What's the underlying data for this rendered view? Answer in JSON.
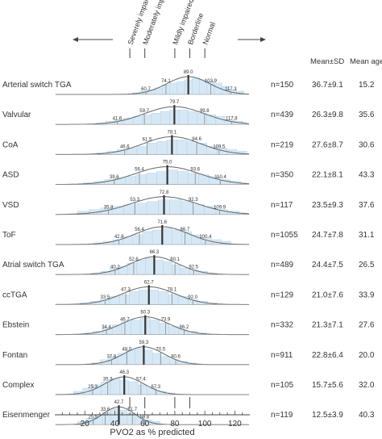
{
  "chart_data": {
    "type": "histogram-distribution",
    "xlabel": "PVO2 as % predicted",
    "xlim": [
      0,
      130
    ],
    "x_ticks": [
      20,
      40,
      60,
      80,
      100,
      120
    ],
    "category_thresholds": [
      {
        "label": "Severely impaired",
        "value": 50
      },
      {
        "label": "Moderately impaired",
        "value": 60
      },
      {
        "label": "Mildly impaired",
        "value": 80
      },
      {
        "label": "Borderline",
        "value": 90
      },
      {
        "label": "Normal",
        "value": 100
      }
    ],
    "headers": {
      "mean": "Mean±SD",
      "age": "Mean age"
    },
    "rows": [
      {
        "group": "Arterial switch TGA",
        "n": "n=150",
        "mean_sd": "36.7±9.1",
        "age": "15.2",
        "mean_pvo2": 89.0,
        "sd_pvo2": 14.3,
        "percentiles": [
          60.7,
          74.1,
          89.0,
          103.9,
          117.3
        ],
        "hist": [
          0.1,
          0.2,
          0.3,
          0.4,
          0.6,
          0.7,
          0.8,
          0.9,
          1.0,
          0.9,
          0.8,
          0.7,
          0.5,
          0.3,
          0.2
        ]
      },
      {
        "group": "Valvular",
        "n": "n=439",
        "mean_sd": "26.3±9.8",
        "age": "35.6",
        "mean_pvo2": 79.7,
        "sd_pvo2": 20.0,
        "percentiles": [
          41.6,
          59.7,
          79.7,
          99.8,
          117.8
        ],
        "hist": [
          0.1,
          0.2,
          0.3,
          0.4,
          0.5,
          0.6,
          0.7,
          0.8,
          0.9,
          0.9,
          0.8,
          0.7,
          0.6,
          0.5,
          0.3,
          0.2,
          0.1
        ]
      },
      {
        "group": "CoA",
        "n": "n=219",
        "mean_sd": "27.6±8.7",
        "age": "30.6",
        "mean_pvo2": 78.1,
        "sd_pvo2": 19.2,
        "percentiles": [
          46.6,
          61.5,
          78.1,
          94.6,
          109.5
        ],
        "hist": [
          0.1,
          0.2,
          0.3,
          0.4,
          0.5,
          0.7,
          0.8,
          0.9,
          0.9,
          0.8,
          0.7,
          0.5,
          0.4,
          0.3,
          0.2
        ]
      },
      {
        "group": "ASD",
        "n": "n=350",
        "mean_sd": "22.1±8.1",
        "age": "43.3",
        "mean_pvo2": 75.0,
        "sd_pvo2": 21.5,
        "percentiles": [
          39.6,
          56.4,
          75.0,
          93.6,
          110.4
        ],
        "hist": [
          0.1,
          0.2,
          0.3,
          0.4,
          0.5,
          0.6,
          0.7,
          0.8,
          0.9,
          0.8,
          0.7,
          0.6,
          0.5,
          0.3,
          0.2,
          0.1
        ]
      },
      {
        "group": "VSD",
        "n": "n=117",
        "mean_sd": "23.5±9.3",
        "age": "37.6",
        "mean_pvo2": 72.8,
        "sd_pvo2": 22.2,
        "percentiles": [
          35.8,
          53.3,
          72.8,
          92.3,
          109.9
        ],
        "hist": [
          0.2,
          0.3,
          0.4,
          0.5,
          0.6,
          0.7,
          0.8,
          0.9,
          0.9,
          0.8,
          0.6,
          0.5,
          0.3,
          0.2,
          0.1
        ]
      },
      {
        "group": "ToF",
        "n": "n=1055",
        "mean_sd": "24.7±7.8",
        "age": "31.1",
        "mean_pvo2": 71.6,
        "sd_pvo2": 17.6,
        "percentiles": [
          42.8,
          56.4,
          71.6,
          86.7,
          100.4
        ],
        "hist": [
          0.1,
          0.2,
          0.3,
          0.5,
          0.6,
          0.8,
          0.9,
          1.0,
          0.9,
          0.8,
          0.6,
          0.4,
          0.3,
          0.2
        ]
      },
      {
        "group": "Atrial switch TGA",
        "n": "n=489",
        "mean_sd": "24.4±7.5",
        "age": "26.5",
        "mean_pvo2": 66.3,
        "sd_pvo2": 15.9,
        "percentiles": [
          40.2,
          52.6,
          66.3,
          80.1,
          92.5
        ],
        "hist": [
          0.1,
          0.2,
          0.4,
          0.5,
          0.7,
          0.9,
          1.0,
          0.9,
          0.8,
          0.6,
          0.4,
          0.3,
          0.2,
          0.1
        ]
      },
      {
        "group": "ccTGA",
        "n": "n=129",
        "mean_sd": "21.0±7.6",
        "age": "33.9",
        "mean_pvo2": 62.7,
        "sd_pvo2": 17.6,
        "percentiles": [
          33.5,
          47.3,
          62.7,
          78.1,
          92.0
        ],
        "hist": [
          0.1,
          0.2,
          0.3,
          0.5,
          0.6,
          0.8,
          0.9,
          0.9,
          0.8,
          0.6,
          0.5,
          0.3,
          0.2,
          0.1
        ]
      },
      {
        "group": "Ebstein",
        "n": "n=332",
        "mean_sd": "21.3±7.1",
        "age": "27.6",
        "mean_pvo2": 60.3,
        "sd_pvo2": 15.8,
        "percentiles": [
          34.4,
          46.7,
          60.3,
          73.9,
          86.2
        ],
        "hist": [
          0.1,
          0.2,
          0.4,
          0.6,
          0.8,
          0.9,
          1.0,
          0.9,
          0.7,
          0.5,
          0.3,
          0.2,
          0.1
        ]
      },
      {
        "group": "Fontan",
        "n": "n=911",
        "mean_sd": "22.8±6.4",
        "age": "20.0",
        "mean_pvo2": 59.3,
        "sd_pvo2": 13.4,
        "percentiles": [
          37.8,
          48.0,
          59.3,
          70.5,
          80.6
        ],
        "hist": [
          0.1,
          0.3,
          0.5,
          0.7,
          0.9,
          1.0,
          0.9,
          0.7,
          0.5,
          0.3,
          0.2,
          0.1
        ]
      },
      {
        "group": "Complex",
        "n": "n=105",
        "mean_sd": "15.7±5.6",
        "age": "32.0",
        "mean_pvo2": 46.3,
        "sd_pvo2": 13.0,
        "percentiles": [
          25.3,
          35.3,
          46.3,
          57.4,
          67.3
        ],
        "hist": [
          0.2,
          0.4,
          0.6,
          0.8,
          1.0,
          0.9,
          0.8,
          0.6,
          0.4,
          0.2,
          0.1
        ]
      },
      {
        "group": "Eisenmenger",
        "n": "n=119",
        "mean_sd": "12.5±3.9",
        "age": "40.3",
        "mean_pvo2": 42.7,
        "sd_pvo2": 10.5,
        "percentiles": [
          25.5,
          33.6,
          42.7,
          51.7,
          59.8
        ],
        "hist": [
          0.2,
          0.4,
          0.6,
          0.8,
          1.0,
          0.9,
          0.7,
          0.5,
          0.3,
          0.2
        ]
      }
    ]
  },
  "colors": {
    "hist_fill": "#d6e8f5",
    "hist_stroke": "#b5d2ea",
    "curve": "#666666",
    "mean_line": "#333333",
    "pct_line": "#888888",
    "axis": "#444444",
    "text": "#333333"
  }
}
